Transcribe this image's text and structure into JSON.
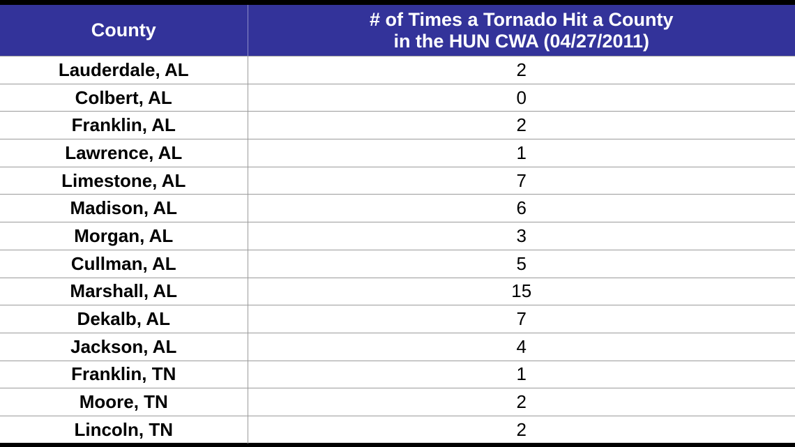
{
  "colors": {
    "header_background": "#33339a",
    "header_text": "#ffffff",
    "grid_line": "#9a9a9a",
    "page_border": "#000000"
  },
  "table": {
    "headers": {
      "county": "County",
      "count_line1": "# of Times a Tornado Hit a County",
      "count_line2": "in the HUN CWA (04/27/2011)"
    },
    "rows": [
      {
        "county": "Lauderdale, AL",
        "count": "2"
      },
      {
        "county": "Colbert, AL",
        "count": "0"
      },
      {
        "county": "Franklin, AL",
        "count": "2"
      },
      {
        "county": "Lawrence, AL",
        "count": "1"
      },
      {
        "county": "Limestone, AL",
        "count": "7"
      },
      {
        "county": "Madison, AL",
        "count": "6"
      },
      {
        "county": "Morgan, AL",
        "count": "3"
      },
      {
        "county": "Cullman, AL",
        "count": "5"
      },
      {
        "county": "Marshall, AL",
        "count": "15"
      },
      {
        "county": "Dekalb, AL",
        "count": "7"
      },
      {
        "county": "Jackson, AL",
        "count": "4"
      },
      {
        "county": "Franklin, TN",
        "count": "1"
      },
      {
        "county": "Moore, TN",
        "count": "2"
      },
      {
        "county": "Lincoln, TN",
        "count": "2"
      }
    ]
  }
}
